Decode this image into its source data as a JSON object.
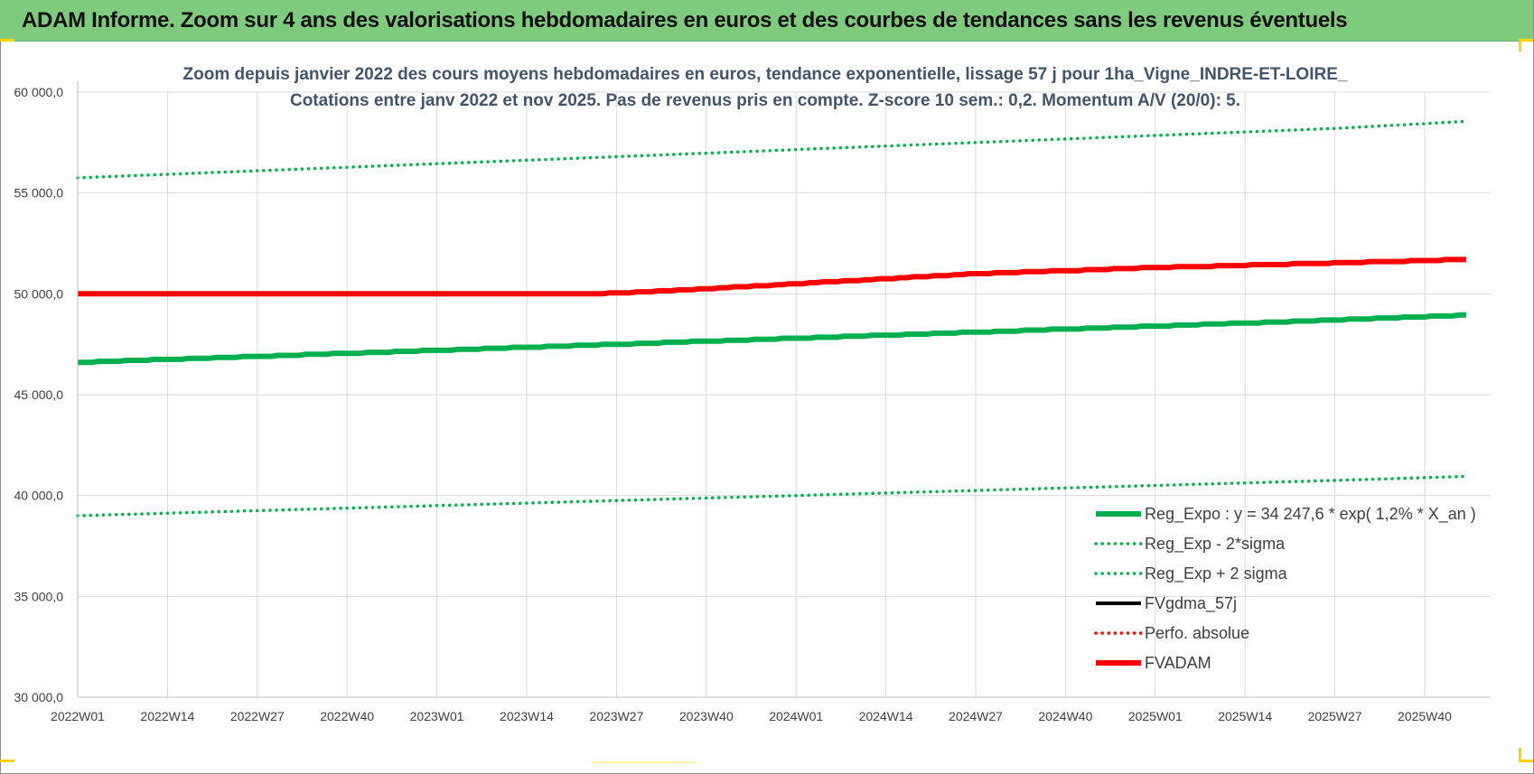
{
  "banner": {
    "title": "ADAM Informe. Zoom sur 4 ans des valorisations hebdomadaires en euros et des courbes de tendances sans les revenus éventuels"
  },
  "chart_data": {
    "type": "line",
    "title_line1": "Zoom depuis janvier 2022 des cours moyens hebdomadaires en euros, tendance exponentielle, lissage 57 j pour 1ha_Vigne_INDRE-ET-LOIRE_",
    "title_line2": "Cotations entre janv 2022 et nov 2025. Pas de revenus pris en compte. Z-score 10 sem.: 0,2. Momentum A/V (20/0): 5.",
    "xlabel": "",
    "ylabel": "",
    "ylim": [
      30000,
      60000
    ],
    "yticks": [
      "30 000,0",
      "35 000,0",
      "40 000,0",
      "45 000,0",
      "50 000,0",
      "55 000,0",
      "60 000,0"
    ],
    "yticks_values": [
      30000,
      35000,
      40000,
      45000,
      50000,
      55000,
      60000
    ],
    "xticks": [
      "2022W01",
      "2022W14",
      "2022W27",
      "2022W40",
      "2023W01",
      "2023W14",
      "2023W27",
      "2023W40",
      "2024W01",
      "2024W14",
      "2024W27",
      "2024W40",
      "2025W01",
      "2025W14",
      "2025W27",
      "2025W40"
    ],
    "x_start": "2022W01",
    "x_end": "2025W46",
    "grid": true,
    "legend_position": "bottom-right",
    "series": [
      {
        "name": "Reg_Expo : y = 34 247,6 * exp( 1,2% *  X_an )",
        "style": "solid-thick",
        "color": "#00b050",
        "x": [
          "2022W01",
          "2022W27",
          "2023W01",
          "2023W27",
          "2024W01",
          "2024W27",
          "2025W01",
          "2025W27",
          "2025W46"
        ],
        "values": [
          46600,
          46900,
          47200,
          47500,
          47800,
          48100,
          48400,
          48700,
          48950
        ]
      },
      {
        "name": "Reg_Exp - 2*sigma",
        "style": "dotted",
        "color": "#00b050",
        "x": [
          "2022W01",
          "2022W27",
          "2023W01",
          "2023W27",
          "2024W01",
          "2024W27",
          "2025W01",
          "2025W27",
          "2025W46"
        ],
        "values": [
          39000,
          39250,
          39500,
          39750,
          40000,
          40250,
          40500,
          40750,
          40950
        ]
      },
      {
        "name": "Reg_Exp + 2 sigma",
        "style": "dotted",
        "color": "#00b050",
        "x": [
          "2022W01",
          "2022W27",
          "2023W01",
          "2023W27",
          "2024W01",
          "2024W27",
          "2025W01",
          "2025W27",
          "2025W46"
        ],
        "values": [
          55750,
          56100,
          56450,
          56800,
          57150,
          57500,
          57850,
          58200,
          58550
        ]
      },
      {
        "name": "FVgdma_57j",
        "style": "solid",
        "color": "#000000",
        "x": [],
        "values": []
      },
      {
        "name": "Perfo. absolue",
        "style": "dotted",
        "color": "#ff0000",
        "x": [],
        "values": []
      },
      {
        "name": "FVADAM",
        "style": "solid-thick",
        "color": "#ff0000",
        "x": [
          "2022W01",
          "2023W20",
          "2023W27",
          "2023W40",
          "2024W01",
          "2024W14",
          "2024W27",
          "2024W40",
          "2025W01",
          "2025W14",
          "2025W27",
          "2025W40",
          "2025W46"
        ],
        "values": [
          50000,
          50000,
          50030,
          50250,
          50500,
          50750,
          51000,
          51150,
          51300,
          51420,
          51530,
          51650,
          51700
        ]
      }
    ]
  },
  "colors": {
    "banner_bg": "#7fcb7d",
    "accent_corner": "#ffd200",
    "grid": "#d9d9d9",
    "title": "#44546a"
  }
}
